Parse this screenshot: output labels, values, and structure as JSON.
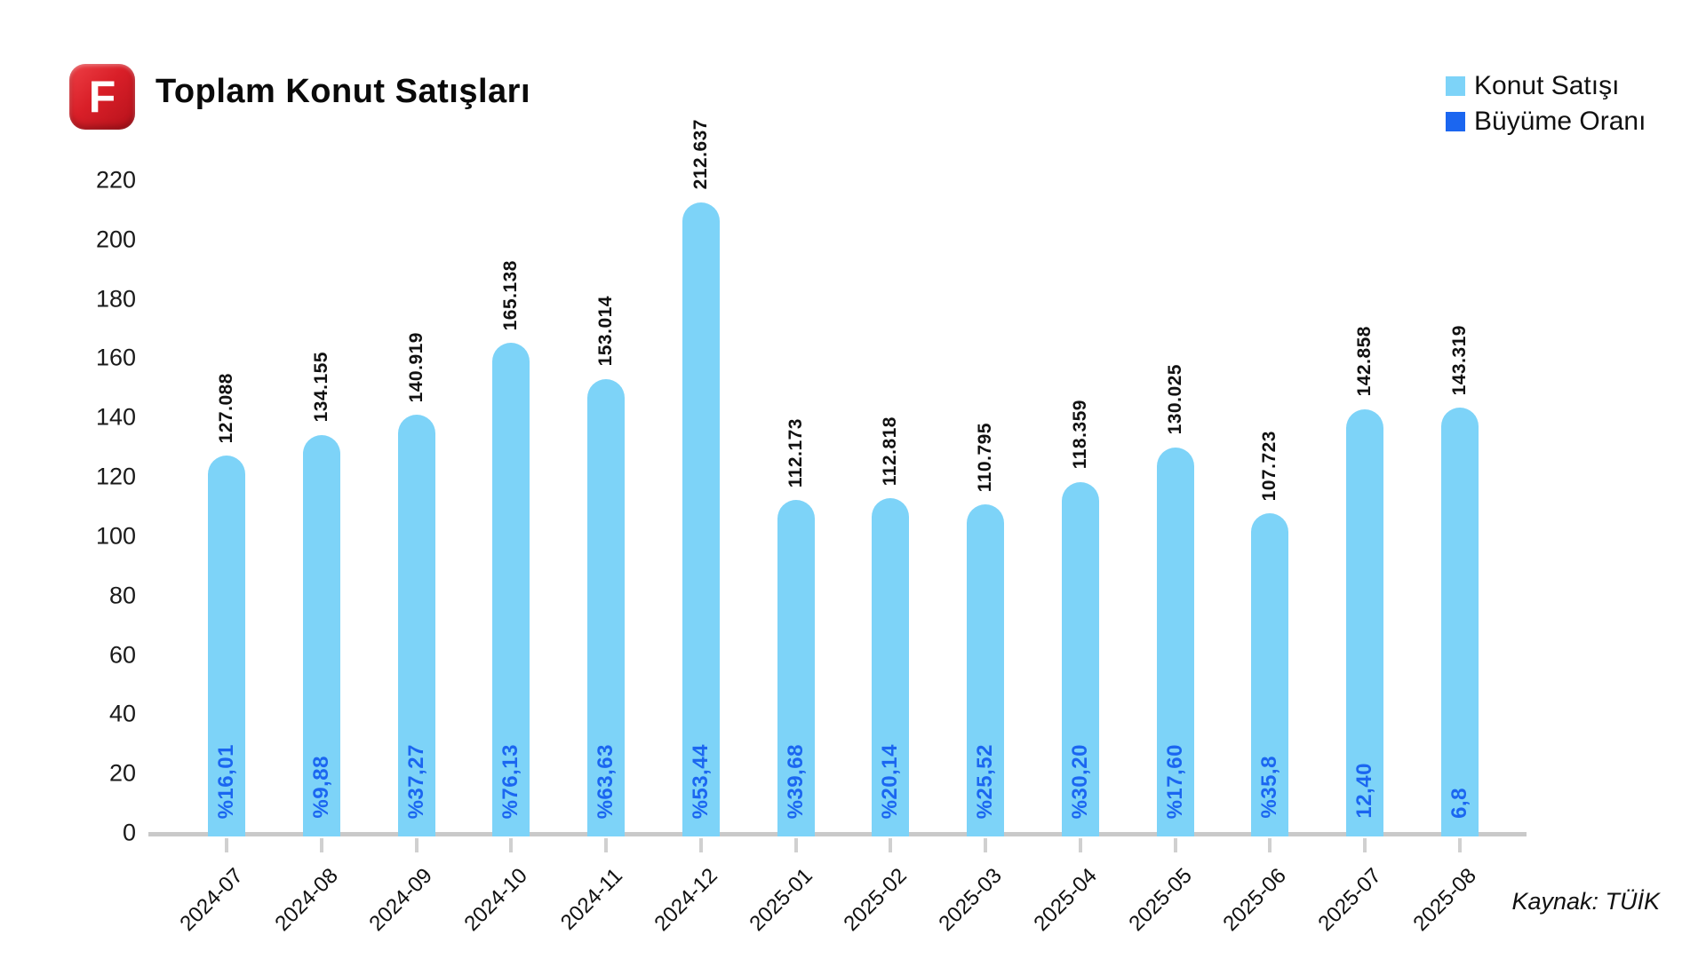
{
  "header": {
    "logo_letter": "F",
    "title": "Toplam Konut Satışları"
  },
  "legend": [
    {
      "label": "Konut Satışı",
      "color": "#7dd3f8"
    },
    {
      "label": "Büyüme Oranı",
      "color": "#1b66f0"
    }
  ],
  "source": "Kaynak: TÜİK",
  "chart_data": {
    "type": "bar",
    "title": "Toplam Konut Satışları",
    "categories": [
      "2024-07",
      "2024-08",
      "2024-09",
      "2024-10",
      "2024-11",
      "2024-12",
      "2025-01",
      "2025-02",
      "2025-03",
      "2025-04",
      "2025-05",
      "2025-06",
      "2025-07",
      "2025-08"
    ],
    "series": [
      {
        "name": "Konut Satışı",
        "color": "#7dd3f8",
        "values": [
          127.088,
          134.155,
          140.919,
          165.138,
          153.014,
          212.637,
          112.173,
          112.818,
          110.795,
          118.359,
          130.025,
          107.723,
          142.858,
          143.319
        ],
        "value_labels": [
          "127.088",
          "134.155",
          "140.919",
          "165.138",
          "153.014",
          "212.637",
          "112.173",
          "112.818",
          "110.795",
          "118.359",
          "130.025",
          "107.723",
          "142.858",
          "143.319"
        ]
      },
      {
        "name": "Büyüme Oranı",
        "color": "#1b66f0",
        "labels": [
          "%16,01",
          "%9,88",
          "%37,27",
          "%76,13",
          "%63,63",
          "%53,44",
          "%39,68",
          "%20,14",
          "%25,52",
          "%30,20",
          "%17,60",
          "%35,8",
          "12,40",
          "6,8"
        ]
      }
    ],
    "ylim": [
      0,
      220
    ],
    "yticks": [
      0,
      20,
      40,
      60,
      80,
      100,
      120,
      140,
      160,
      180,
      200,
      220
    ],
    "grid": false,
    "legend_position": "top-right",
    "xlabel": "",
    "ylabel": ""
  }
}
